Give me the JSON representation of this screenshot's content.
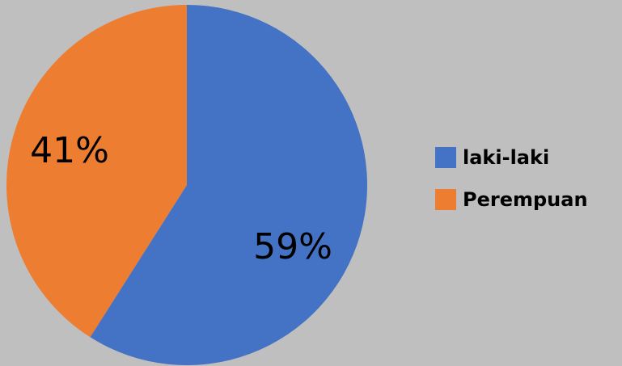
{
  "colors": {
    "background": "#BFBFBF",
    "laki": "#4472C4",
    "perempuan": "#ED7D31"
  },
  "chart_data": {
    "type": "pie",
    "categories": [
      "laki-laki",
      "Perempuan"
    ],
    "values": [
      59,
      41
    ],
    "data_labels": [
      "59%",
      "41%"
    ],
    "colors": [
      "#4472C4",
      "#ED7D31"
    ],
    "legend_position": "right",
    "start_angle": "top, clockwise"
  },
  "legend": {
    "items": [
      {
        "label": "laki-laki",
        "color": "#4472C4"
      },
      {
        "label": "Perempuan",
        "color": "#ED7D31"
      }
    ]
  }
}
